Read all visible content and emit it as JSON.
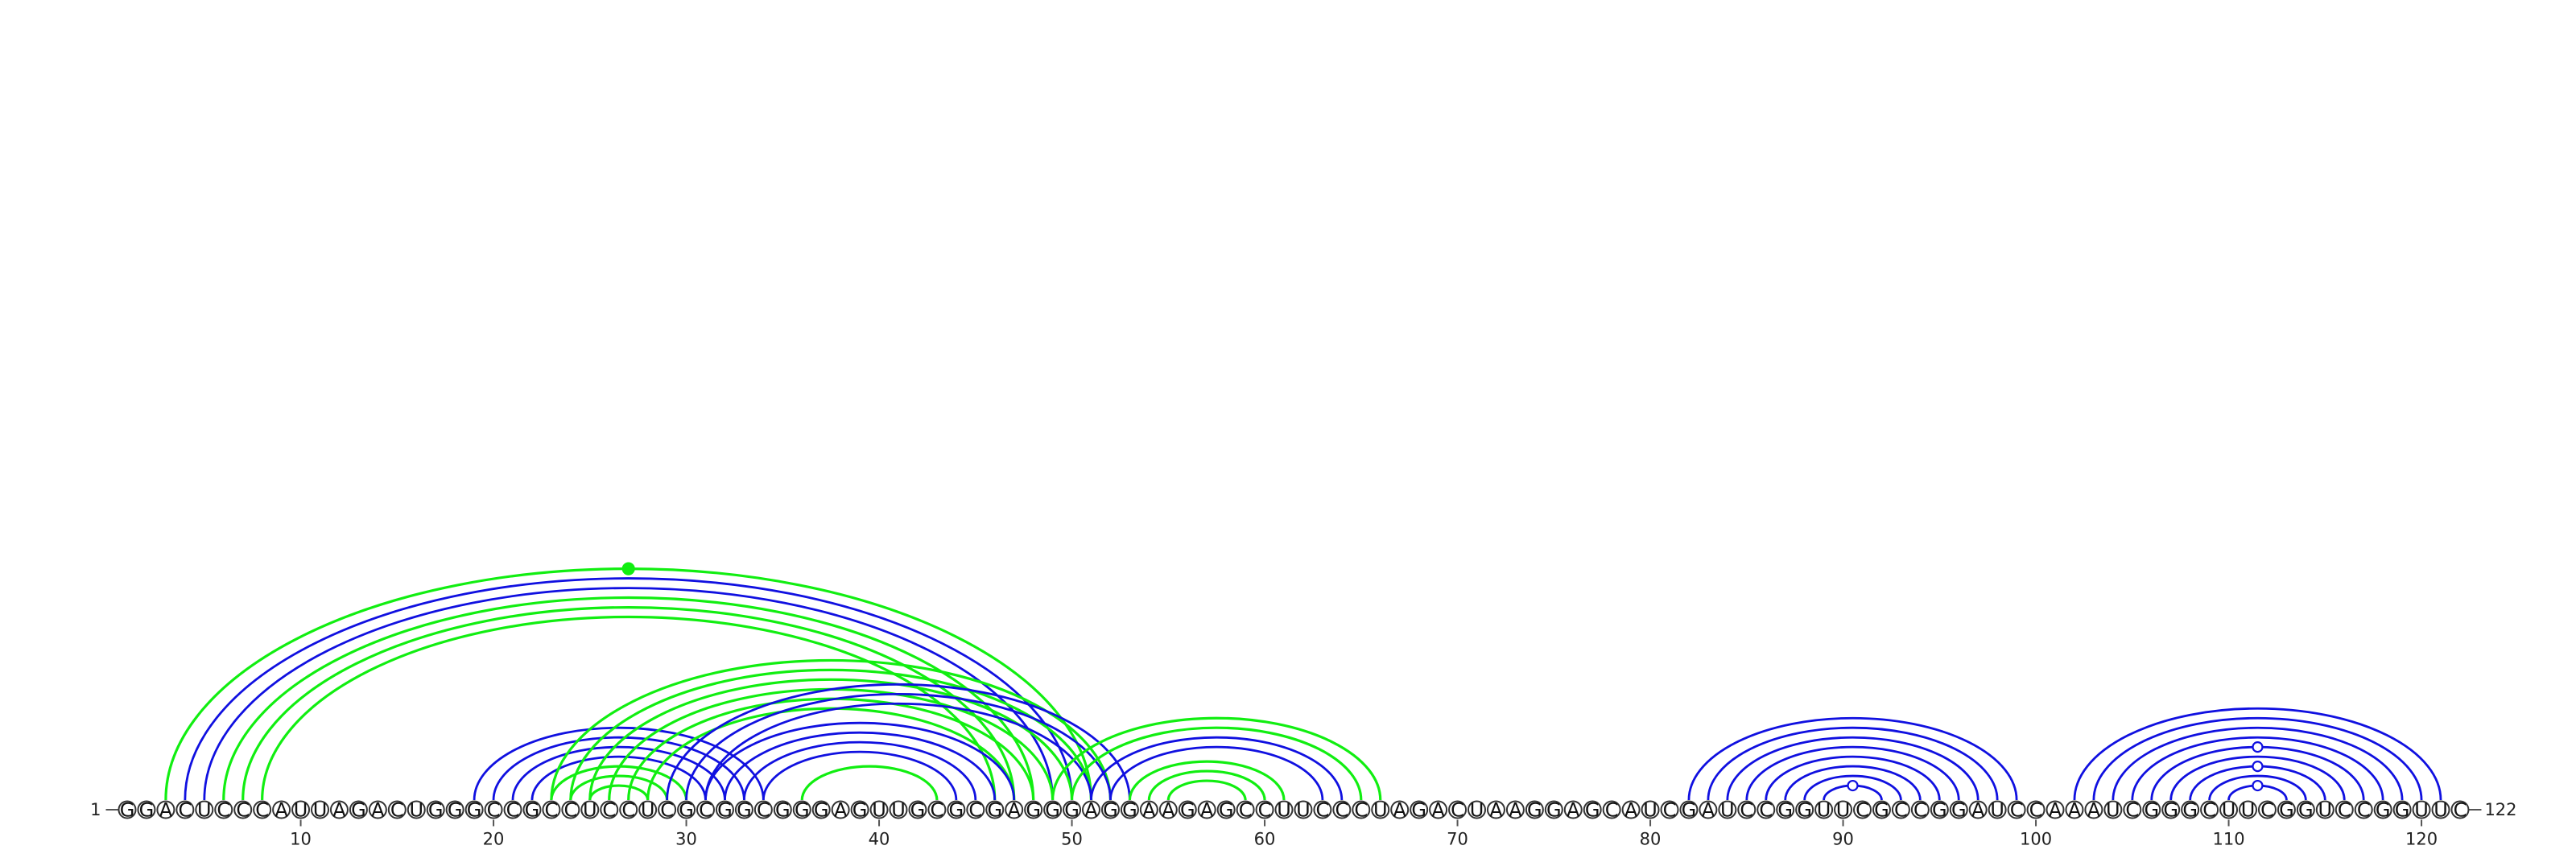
{
  "sequence": "GGACUCCCAUUAGACUGGGCCGCCUCCUCGCGGCGGGAGUUGCGCGAGGGAGGAAGAGCCUUCCCUAGACUAAGGAGCAUCGAUCCGGUUCGCCGGAUCCAAAUCGGGCUUCGGUCCGGUUC",
  "start_label": "1",
  "end_label": "122",
  "ticks": [
    "10",
    "20",
    "30",
    "40",
    "50",
    "60",
    "70",
    "80",
    "90",
    "100",
    "110",
    "120"
  ],
  "tick_positions": [
    10,
    20,
    30,
    40,
    50,
    60,
    70,
    80,
    90,
    100,
    110,
    120
  ],
  "colors": {
    "blue": "#1010e0",
    "green": "#11ee11"
  },
  "chart_data": {
    "type": "arc-diagram",
    "length": 122,
    "helices": [
      {
        "color": "green",
        "pairs": [
          [
            3,
            51
          ]
        ]
      },
      {
        "color": "blue",
        "pairs": [
          [
            4,
            50
          ],
          [
            5,
            49
          ]
        ]
      },
      {
        "color": "green",
        "pairs": [
          [
            6,
            48
          ],
          [
            7,
            47
          ],
          [
            8,
            46
          ]
        ]
      },
      {
        "color": "blue",
        "pairs": [
          [
            19,
            34
          ],
          [
            20,
            33
          ],
          [
            21,
            32
          ],
          [
            22,
            31
          ]
        ]
      },
      {
        "color": "green",
        "pairs": [
          [
            23,
            30
          ],
          [
            24,
            29
          ],
          [
            25,
            28
          ]
        ]
      },
      {
        "color": "green",
        "pairs": [
          [
            23,
            52
          ],
          [
            24,
            51
          ],
          [
            25,
            50
          ],
          [
            26,
            49
          ],
          [
            27,
            48
          ],
          [
            28,
            47
          ]
        ]
      },
      {
        "color": "blue",
        "pairs": [
          [
            29,
            53
          ],
          [
            30,
            52
          ],
          [
            31,
            51
          ]
        ]
      },
      {
        "color": "blue",
        "pairs": [
          [
            31,
            47
          ],
          [
            32,
            46
          ],
          [
            33,
            45
          ],
          [
            34,
            44
          ]
        ]
      },
      {
        "color": "green",
        "pairs": [
          [
            36,
            43
          ]
        ]
      },
      {
        "color": "green",
        "pairs": [
          [
            49,
            66
          ],
          [
            50,
            65
          ]
        ]
      },
      {
        "color": "blue",
        "pairs": [
          [
            51,
            64
          ],
          [
            52,
            63
          ]
        ]
      },
      {
        "color": "green",
        "pairs": [
          [
            53,
            61
          ],
          [
            54,
            60
          ],
          [
            55,
            59
          ]
        ]
      },
      {
        "color": "blue",
        "pairs": [
          [
            82,
            99
          ],
          [
            83,
            98
          ],
          [
            84,
            97
          ],
          [
            85,
            96
          ],
          [
            86,
            95
          ],
          [
            87,
            94
          ],
          [
            88,
            93
          ],
          [
            89,
            92
          ]
        ]
      },
      {
        "color": "blue",
        "pairs": [
          [
            102,
            121
          ],
          [
            103,
            120
          ],
          [
            104,
            119
          ],
          [
            105,
            118
          ],
          [
            106,
            117
          ],
          [
            107,
            116
          ],
          [
            108,
            115
          ],
          [
            109,
            114
          ],
          [
            110,
            113
          ]
        ]
      }
    ]
  }
}
